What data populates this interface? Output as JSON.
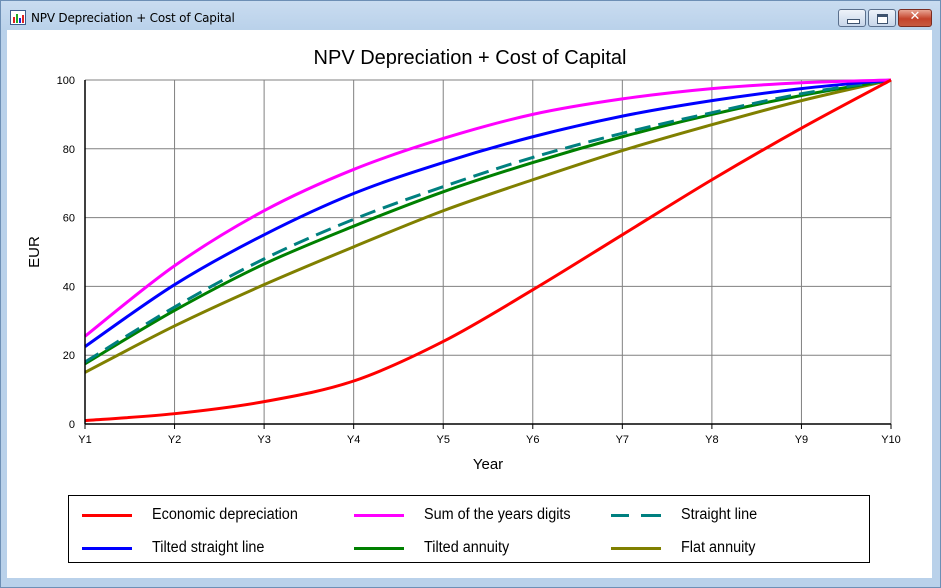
{
  "window": {
    "title": "NPV Depreciation + Cost of Capital",
    "icon": "bar-chart-app-icon",
    "controls": {
      "minimize": "minimize-icon",
      "maximize": "maximize-icon",
      "close_glyph": "✕"
    }
  },
  "chart_data": {
    "type": "line",
    "title": "NPV Depreciation + Cost of Capital",
    "xlabel": "Year",
    "ylabel": "EUR",
    "categories": [
      "Y1",
      "Y2",
      "Y3",
      "Y4",
      "Y5",
      "Y6",
      "Y7",
      "Y8",
      "Y9",
      "Y10"
    ],
    "ylim": [
      0,
      100
    ],
    "yticks": [
      0,
      20,
      40,
      60,
      80,
      100
    ],
    "grid": true,
    "legend_position": "bottom",
    "series": [
      {
        "name": "Economic depreciation",
        "color": "#ff0000",
        "dashed": false,
        "values": [
          1,
          3,
          6.5,
          12.5,
          24,
          39,
          55,
          71,
          86,
          100
        ]
      },
      {
        "name": "Sum of the years digits",
        "color": "#ff00ff",
        "dashed": false,
        "values": [
          25.5,
          46,
          62,
          74,
          83,
          90,
          94.5,
          97.5,
          99.2,
          100
        ]
      },
      {
        "name": "Straight line",
        "color": "#008080",
        "dashed": true,
        "values": [
          18,
          34,
          48,
          59.5,
          69,
          77.5,
          84.5,
          90.5,
          96,
          100
        ]
      },
      {
        "name": "Tilted straight line",
        "color": "#0000ff",
        "dashed": false,
        "values": [
          22.5,
          40.5,
          55,
          67,
          76,
          83.5,
          89.5,
          94,
          97.5,
          100
        ]
      },
      {
        "name": "Tilted annuity",
        "color": "#008000",
        "dashed": false,
        "values": [
          17.5,
          33,
          46.5,
          57.5,
          67.5,
          76,
          83.5,
          90,
          95.5,
          100
        ]
      },
      {
        "name": "Flat annuity",
        "color": "#808000",
        "dashed": false,
        "values": [
          15,
          28.5,
          40.5,
          51.5,
          62,
          71,
          79.5,
          87,
          94,
          100
        ]
      }
    ]
  }
}
